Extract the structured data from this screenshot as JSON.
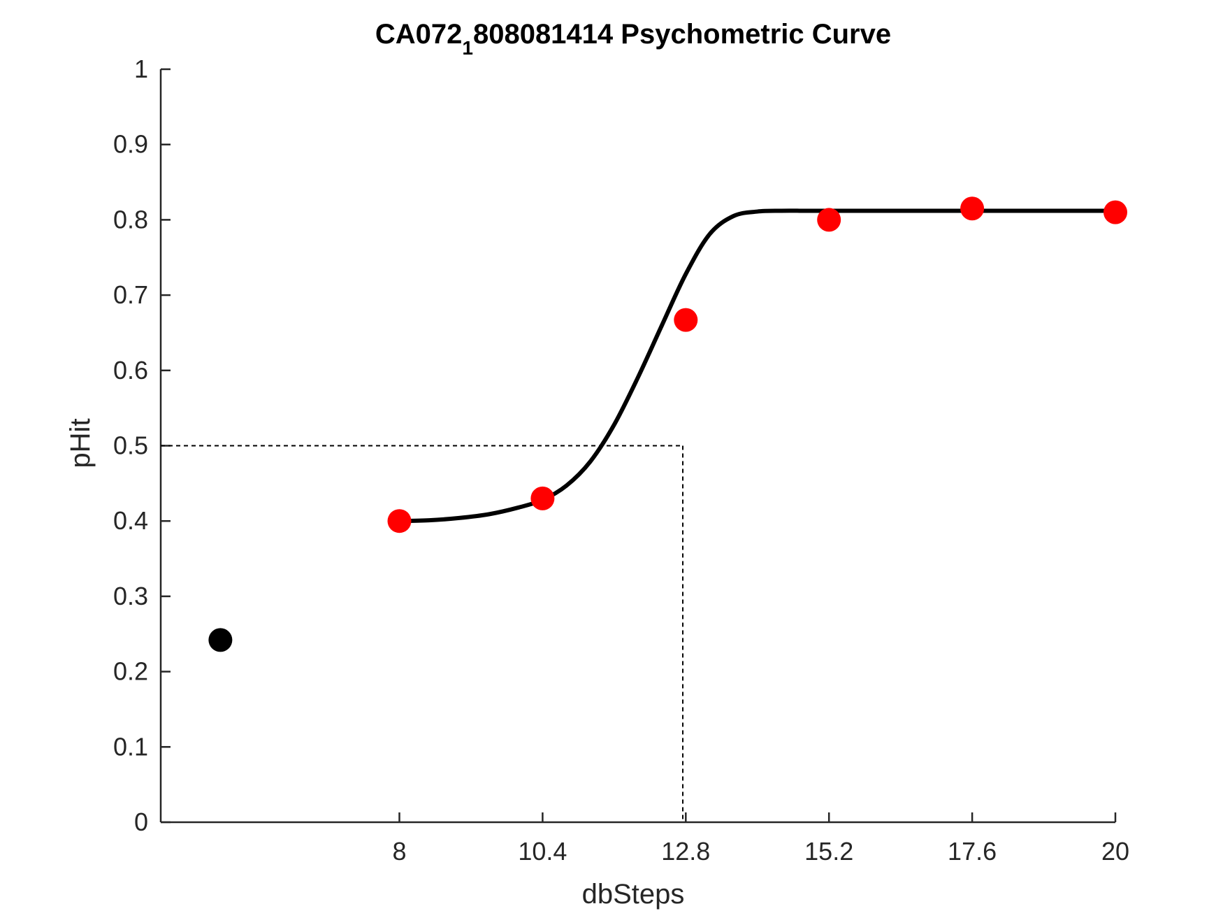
{
  "chart_data": {
    "type": "line",
    "title": {
      "main": "CA072",
      "subscript": "1",
      "rest": "808081414 Psychometric Curve"
    },
    "xlabel": "dbSteps",
    "ylabel": "pHit",
    "xlim": [
      4,
      20
    ],
    "ylim": [
      0,
      1
    ],
    "xticks": [
      8,
      10.4,
      12.8,
      15.2,
      17.6,
      20
    ],
    "xtick_labels": [
      "8",
      "10.4",
      "12.8",
      "15.2",
      "17.6",
      "20"
    ],
    "yticks": [
      0,
      0.1,
      0.2,
      0.3,
      0.4,
      0.5,
      0.6,
      0.7,
      0.8,
      0.9,
      1
    ],
    "ytick_labels": [
      "0",
      "0.1",
      "0.2",
      "0.3",
      "0.4",
      "0.5",
      "0.6",
      "0.7",
      "0.8",
      "0.9",
      "1"
    ],
    "grid": false,
    "series": [
      {
        "type": "scatter",
        "color": "#ff0000",
        "x": [
          8,
          10.4,
          12.8,
          15.2,
          17.6,
          20
        ],
        "y": [
          0.4,
          0.43,
          0.667,
          0.8,
          0.815,
          0.81
        ]
      },
      {
        "type": "scatter",
        "color": "#000000",
        "x": [
          5
        ],
        "y": [
          0.242
        ]
      },
      {
        "type": "line",
        "color": "#000000",
        "x": [
          8.0,
          8.5,
          9.0,
          9.5,
          10.0,
          10.4,
          10.8,
          11.2,
          11.6,
          12.0,
          12.4,
          12.8,
          13.2,
          13.6,
          14.0,
          14.4,
          14.8,
          15.2,
          16.0,
          17.6,
          20.0
        ],
        "y": [
          0.4,
          0.401,
          0.404,
          0.409,
          0.418,
          0.428,
          0.447,
          0.479,
          0.528,
          0.591,
          0.66,
          0.728,
          0.781,
          0.805,
          0.811,
          0.812,
          0.812,
          0.812,
          0.812,
          0.812,
          0.812
        ]
      },
      {
        "type": "threshold",
        "style": "dashed",
        "color": "#000000",
        "x": 12.75,
        "y": 0.5
      }
    ]
  }
}
